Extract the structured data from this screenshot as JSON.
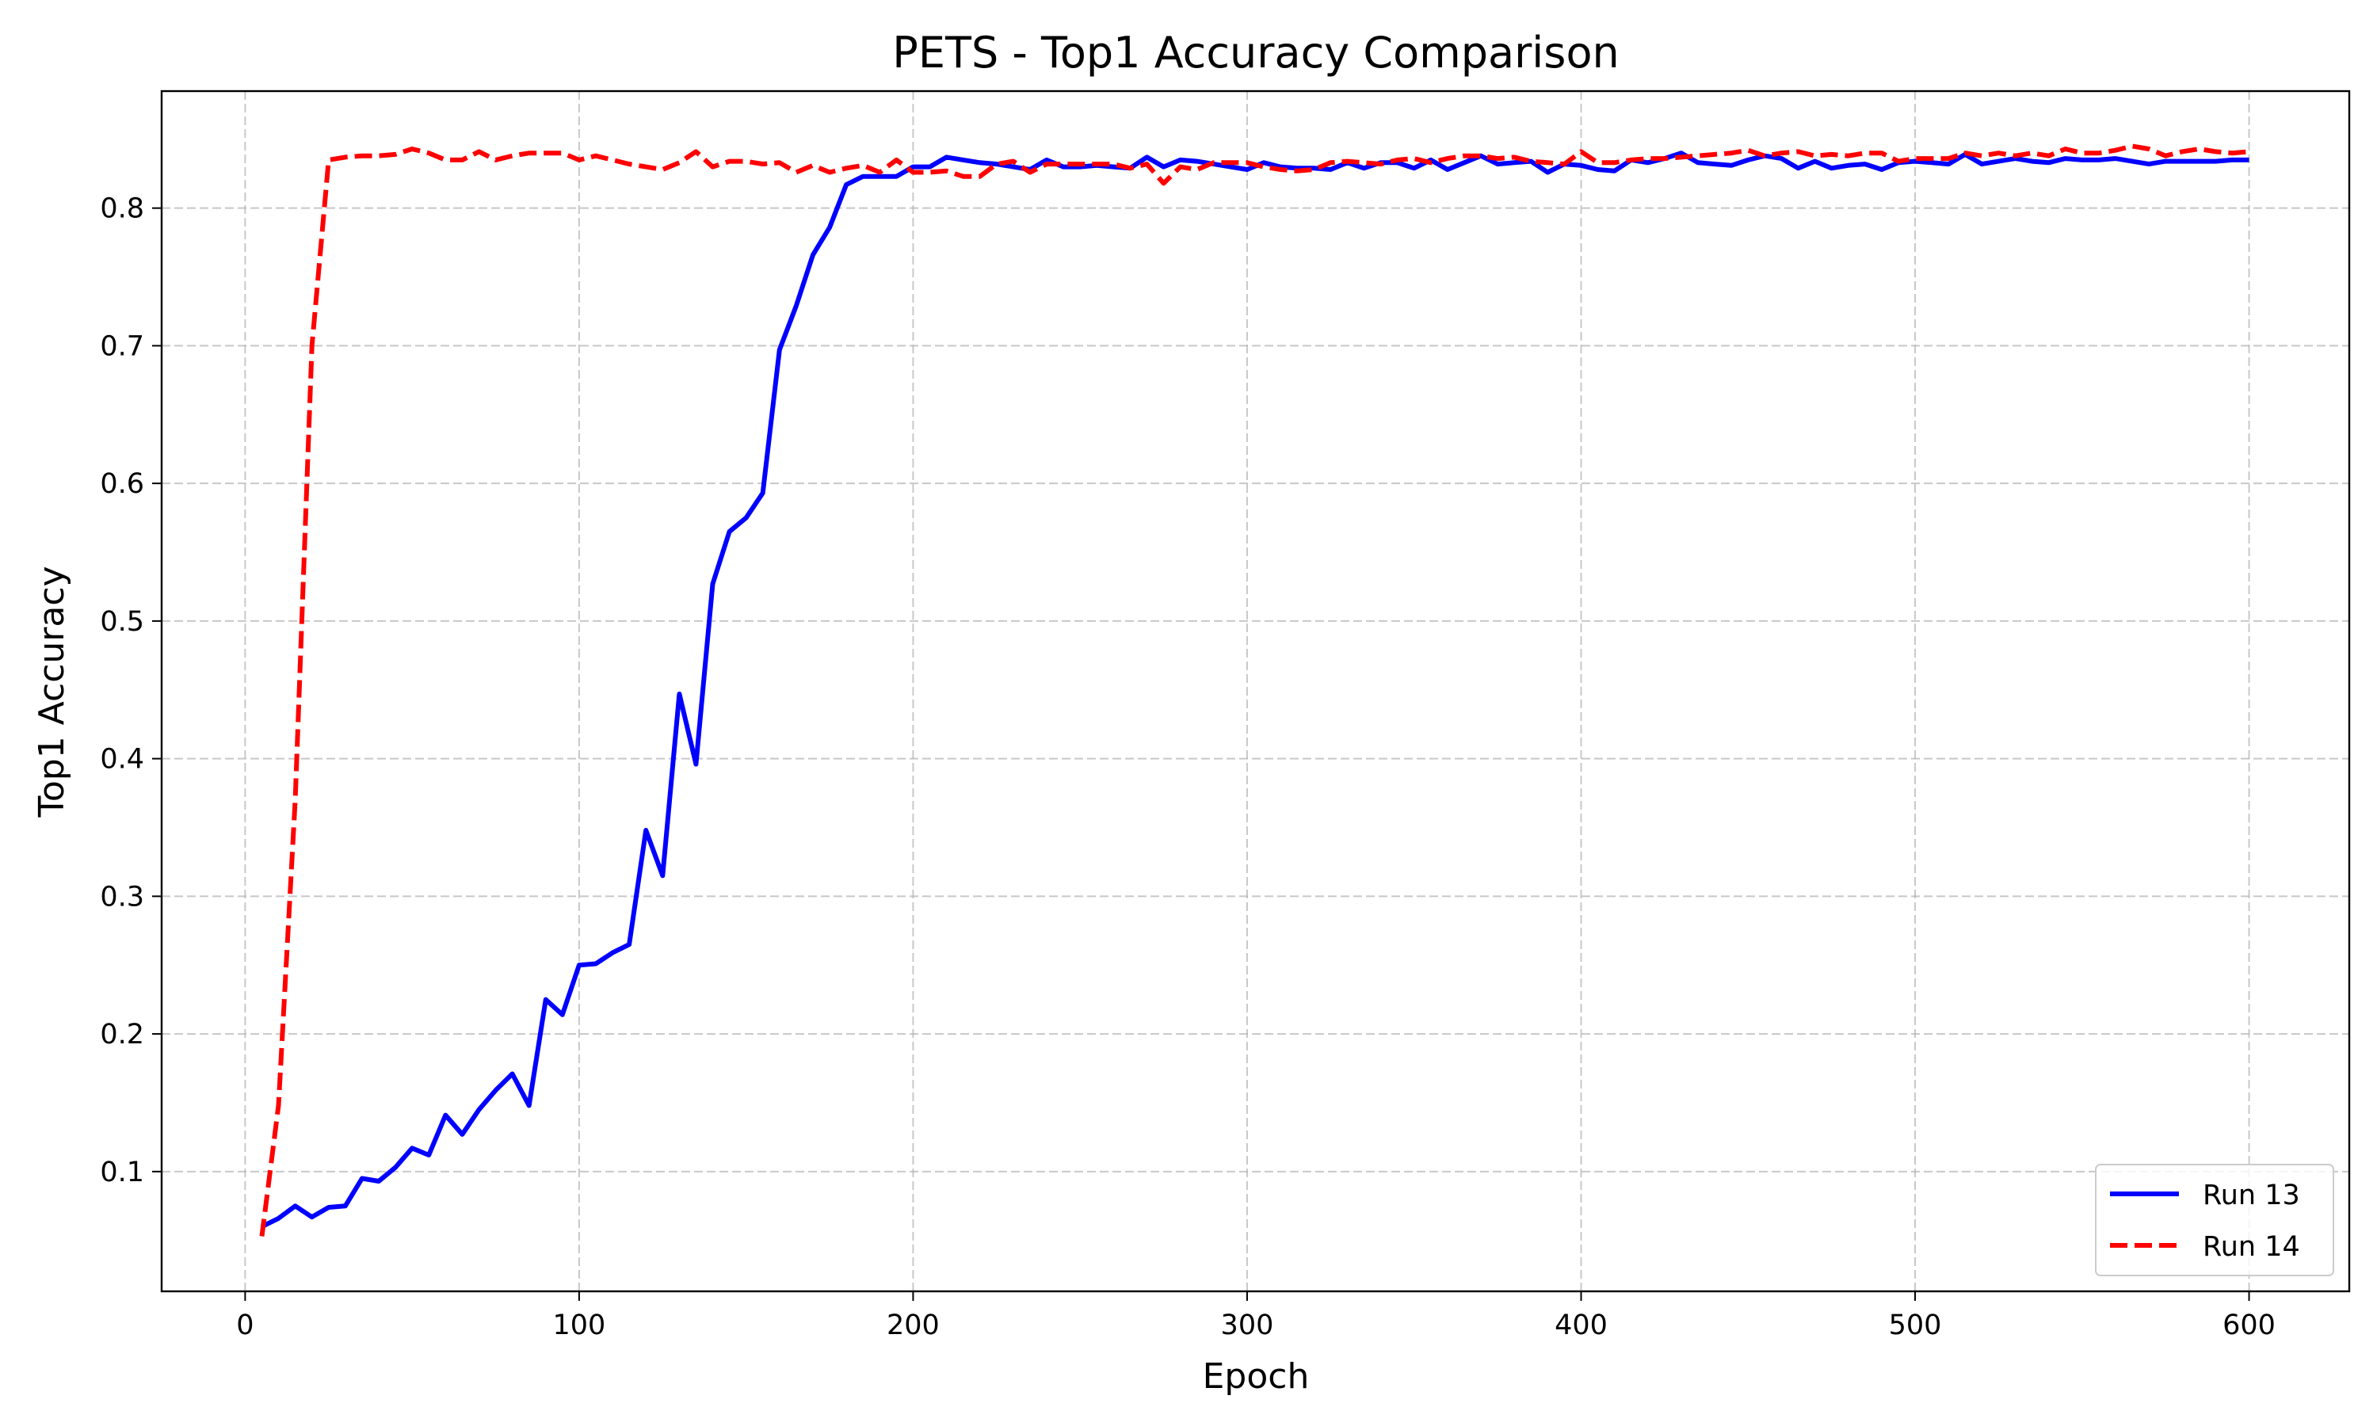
{
  "chart_data": {
    "type": "line",
    "title": "PETS - Top1 Accuracy Comparison",
    "xlabel": "Epoch",
    "ylabel": "Top1 Accuracy",
    "xlim": [
      -25,
      630
    ],
    "ylim": [
      0.013,
      0.885
    ],
    "xticks": [
      0,
      100,
      200,
      300,
      400,
      500,
      600
    ],
    "yticks": [
      0.1,
      0.2,
      0.3,
      0.4,
      0.5,
      0.6,
      0.7,
      0.8
    ],
    "grid": true,
    "legend_position": "lower-right",
    "series": [
      {
        "name": "Run 13",
        "color": "#0000ff",
        "style": "solid",
        "x": [
          5,
          10,
          15,
          20,
          25,
          30,
          35,
          40,
          45,
          50,
          55,
          60,
          65,
          70,
          75,
          80,
          85,
          90,
          95,
          100,
          105,
          110,
          115,
          120,
          125,
          130,
          135,
          140,
          145,
          150,
          155,
          160,
          165,
          170,
          175,
          180,
          185,
          190,
          195,
          200,
          205,
          210,
          215,
          220,
          225,
          230,
          235,
          240,
          245,
          250,
          255,
          260,
          265,
          270,
          275,
          280,
          285,
          290,
          295,
          300,
          305,
          310,
          315,
          320,
          325,
          330,
          335,
          340,
          345,
          350,
          355,
          360,
          365,
          370,
          375,
          380,
          385,
          390,
          395,
          400,
          405,
          410,
          415,
          420,
          425,
          430,
          435,
          440,
          445,
          450,
          455,
          460,
          465,
          470,
          475,
          480,
          485,
          490,
          495,
          500,
          505,
          510,
          515,
          520,
          525,
          530,
          535,
          540,
          545,
          550,
          555,
          560,
          565,
          570,
          575,
          580,
          585,
          590,
          595,
          600
        ],
        "y": [
          0.06,
          0.066,
          0.075,
          0.067,
          0.074,
          0.075,
          0.095,
          0.093,
          0.103,
          0.117,
          0.112,
          0.141,
          0.127,
          0.145,
          0.159,
          0.171,
          0.148,
          0.225,
          0.214,
          0.25,
          0.251,
          0.259,
          0.265,
          0.348,
          0.315,
          0.447,
          0.396,
          0.527,
          0.565,
          0.575,
          0.593,
          0.697,
          0.729,
          0.766,
          0.786,
          0.817,
          0.823,
          0.823,
          0.823,
          0.83,
          0.83,
          0.837,
          0.835,
          0.833,
          0.832,
          0.83,
          0.828,
          0.835,
          0.83,
          0.83,
          0.831,
          0.83,
          0.829,
          0.837,
          0.83,
          0.835,
          0.834,
          0.832,
          0.83,
          0.828,
          0.833,
          0.83,
          0.829,
          0.829,
          0.828,
          0.833,
          0.829,
          0.833,
          0.833,
          0.829,
          0.835,
          0.828,
          0.833,
          0.838,
          0.832,
          0.833,
          0.834,
          0.826,
          0.832,
          0.831,
          0.828,
          0.827,
          0.835,
          0.833,
          0.836,
          0.84,
          0.833,
          0.832,
          0.831,
          0.835,
          0.838,
          0.836,
          0.829,
          0.834,
          0.829,
          0.831,
          0.832,
          0.828,
          0.833,
          0.834,
          0.833,
          0.832,
          0.839,
          0.832,
          0.834,
          0.836,
          0.834,
          0.833,
          0.836,
          0.835,
          0.835,
          0.836,
          0.834,
          0.832,
          0.834,
          0.834,
          0.834,
          0.834,
          0.835,
          0.835
        ]
      },
      {
        "name": "Run 14",
        "color": "#ff0000",
        "style": "dashed",
        "x": [
          5,
          10,
          15,
          20,
          25,
          30,
          35,
          40,
          45,
          50,
          55,
          60,
          65,
          70,
          75,
          80,
          85,
          90,
          95,
          100,
          105,
          110,
          115,
          120,
          125,
          130,
          135,
          140,
          145,
          150,
          155,
          160,
          165,
          170,
          175,
          180,
          185,
          190,
          195,
          200,
          205,
          210,
          215,
          220,
          225,
          230,
          235,
          240,
          245,
          250,
          255,
          260,
          265,
          270,
          275,
          280,
          285,
          290,
          295,
          300,
          305,
          310,
          315,
          320,
          325,
          330,
          335,
          340,
          345,
          350,
          355,
          360,
          365,
          370,
          375,
          380,
          385,
          390,
          395,
          400,
          405,
          410,
          415,
          420,
          425,
          430,
          435,
          440,
          445,
          450,
          455,
          460,
          465,
          470,
          475,
          480,
          485,
          490,
          495,
          500,
          505,
          510,
          515,
          520,
          525,
          530,
          535,
          540,
          545,
          550,
          555,
          560,
          565,
          570,
          575,
          580,
          585,
          590,
          595,
          600
        ],
        "y": [
          0.053,
          0.148,
          0.37,
          0.7,
          0.835,
          0.837,
          0.838,
          0.838,
          0.839,
          0.843,
          0.84,
          0.835,
          0.835,
          0.841,
          0.835,
          0.838,
          0.84,
          0.84,
          0.84,
          0.835,
          0.838,
          0.835,
          0.832,
          0.83,
          0.828,
          0.833,
          0.841,
          0.83,
          0.834,
          0.834,
          0.832,
          0.833,
          0.826,
          0.831,
          0.826,
          0.829,
          0.831,
          0.826,
          0.835,
          0.826,
          0.826,
          0.827,
          0.823,
          0.823,
          0.832,
          0.834,
          0.826,
          0.832,
          0.832,
          0.832,
          0.832,
          0.832,
          0.829,
          0.832,
          0.818,
          0.83,
          0.828,
          0.833,
          0.833,
          0.833,
          0.83,
          0.828,
          0.827,
          0.828,
          0.833,
          0.834,
          0.833,
          0.832,
          0.835,
          0.836,
          0.833,
          0.836,
          0.838,
          0.838,
          0.836,
          0.837,
          0.834,
          0.833,
          0.832,
          0.841,
          0.833,
          0.833,
          0.835,
          0.836,
          0.836,
          0.837,
          0.838,
          0.839,
          0.84,
          0.842,
          0.838,
          0.84,
          0.841,
          0.838,
          0.839,
          0.838,
          0.84,
          0.84,
          0.834,
          0.836,
          0.836,
          0.836,
          0.84,
          0.838,
          0.84,
          0.838,
          0.84,
          0.838,
          0.843,
          0.84,
          0.84,
          0.842,
          0.845,
          0.843,
          0.838,
          0.841,
          0.843,
          0.841,
          0.84,
          0.841
        ]
      }
    ]
  }
}
